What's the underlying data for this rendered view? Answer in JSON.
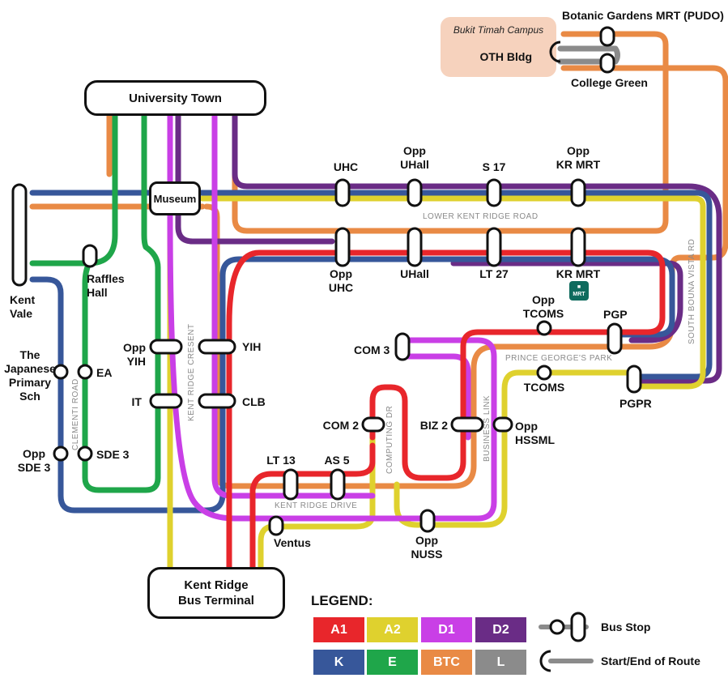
{
  "route_colors": {
    "A1": "#e8262b",
    "A2": "#dfd12e",
    "D1": "#c93fe6",
    "D2": "#6a2c86",
    "K": "#37579a",
    "E": "#1fa64a",
    "BTC": "#e98a45",
    "L": "#8b8b8b"
  },
  "terminals": {
    "university_town": "University Town",
    "museum": "Museum",
    "kent_ridge_terminal": "Kent Ridge\nBus Terminal"
  },
  "campus": {
    "title": "Bukit Timah Campus",
    "building": "OTH Bldg"
  },
  "stops": {
    "botanic_gardens": "Botanic Gardens MRT (PUDO)",
    "college_green": "College Green",
    "uhc": "UHC",
    "opp_uhall": "Opp\nUHall",
    "s17": "S 17",
    "opp_kr_mrt": "Opp\nKR MRT",
    "opp_uhc": "Opp\nUHC",
    "uhall": "UHall",
    "lt27": "LT 27",
    "kr_mrt": "KR MRT",
    "kent_vale": "Kent\nVale",
    "raffles_hall": "Raffles\nHall",
    "japanese_sch": "The\nJapanese\nPrimary\nSch",
    "ea": "EA",
    "opp_sde3": "Opp\nSDE 3",
    "sde3": "SDE 3",
    "opp_yih": "Opp\nYIH",
    "yih": "YIH",
    "it": "IT",
    "clb": "CLB",
    "opp_tcoms": "Opp\nTCOMS",
    "pgp": "PGP",
    "tcoms": "TCOMS",
    "pgpr": "PGPR",
    "com3": "COM 3",
    "com2": "COM 2",
    "biz2": "BIZ 2",
    "opp_hssml": "Opp\nHSSML",
    "lt13": "LT 13",
    "as5": "AS 5",
    "ventus": "Ventus",
    "opp_nuss": "Opp\nNUSS"
  },
  "roads": {
    "lower_kent_ridge": "LOWER KENT RIDGE ROAD",
    "prince_georges": "PRINCE GEORGE'S PARK",
    "south_buona_vista": "SOUTH BOUNA VISTA RD",
    "clementi": "CLEMENTI ROAD",
    "kent_ridge_crescent": "KENT RIDGE CRESENT",
    "computing_dr": "COMPUTING DR",
    "business_link": "BUSINESS LINK",
    "kent_ridge_drive": "KENT RIDGE DRIVE"
  },
  "mrt_badge": "MRT",
  "legend": {
    "title": "LEGEND:",
    "routes": [
      {
        "label": "A1",
        "color": "#e8262b"
      },
      {
        "label": "A2",
        "color": "#dfd12e"
      },
      {
        "label": "D1",
        "color": "#c93fe6"
      },
      {
        "label": "D2",
        "color": "#6a2c86"
      },
      {
        "label": "K",
        "color": "#37579a"
      },
      {
        "label": "E",
        "color": "#1fa64a"
      },
      {
        "label": "BTC",
        "color": "#e98a45"
      },
      {
        "label": "L",
        "color": "#8b8b8b"
      }
    ],
    "bus_stop": "Bus Stop",
    "start_end": "Start/End of Route"
  }
}
